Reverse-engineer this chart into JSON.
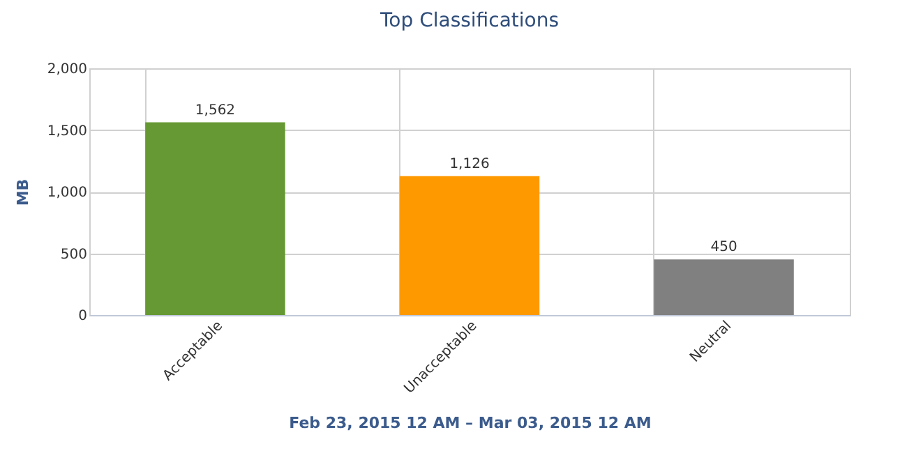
{
  "chart_data": {
    "type": "bar",
    "title": "Top Classifications",
    "xlabel": "Feb 23, 2015 12 AM – Mar 03, 2015 12 AM",
    "ylabel": "MB",
    "categories": [
      "Acceptable",
      "Unacceptable",
      "Neutral"
    ],
    "values": [
      1562,
      1126,
      450
    ],
    "value_labels": [
      "1,562",
      "1,126",
      "450"
    ],
    "colors": [
      "#669933",
      "#ff9900",
      "#808080"
    ],
    "ylim": [
      0,
      2000
    ],
    "yticks": [
      0,
      {
        "value": 500,
        "label": "500"
      },
      {
        "value": 1000,
        "label": "1,000"
      },
      {
        "value": 1500,
        "label": "1,500"
      },
      {
        "value": 2000,
        "label": "2,000"
      }
    ],
    "grid": true
  }
}
